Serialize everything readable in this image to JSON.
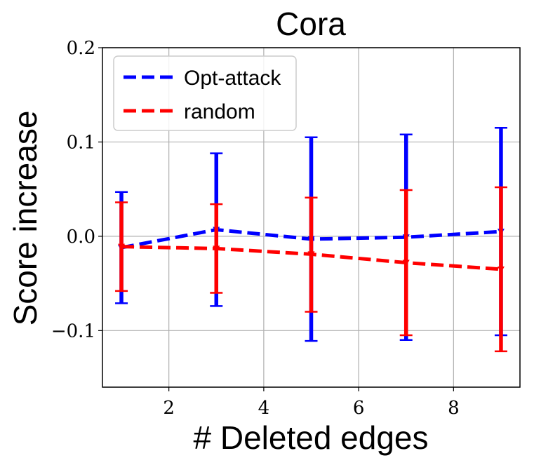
{
  "chart_data": {
    "type": "line",
    "title": "Cora",
    "xlabel": "# Deleted edges",
    "ylabel": "Score increase",
    "xlim": [
      0.6,
      9.4
    ],
    "ylim": [
      -0.16,
      0.2
    ],
    "x_ticks": [
      2,
      4,
      6,
      8
    ],
    "x_tick_labels": [
      "2",
      "4",
      "6",
      "8"
    ],
    "y_ticks": [
      -0.1,
      0.0,
      0.1,
      0.2
    ],
    "y_tick_labels": [
      "−0.1",
      "0.0",
      "0.1",
      "0.2"
    ],
    "grid": true,
    "legend_position": "top-left",
    "x": [
      1,
      3,
      5,
      7,
      9
    ],
    "series": [
      {
        "name": "Opt-attack",
        "color": "#0000ff",
        "marker": "triangle-down",
        "values": [
          -0.012,
          0.007,
          -0.003,
          -0.001,
          0.005
        ],
        "err_low": [
          -0.071,
          -0.074,
          -0.111,
          -0.11,
          -0.105
        ],
        "err_high": [
          0.047,
          0.088,
          0.105,
          0.108,
          0.115
        ]
      },
      {
        "name": "random",
        "color": "#ff0000",
        "marker": "triangle-down",
        "values": [
          -0.011,
          -0.013,
          -0.019,
          -0.028,
          -0.035
        ],
        "err_low": [
          -0.058,
          -0.06,
          -0.08,
          -0.105,
          -0.122
        ],
        "err_high": [
          0.036,
          0.034,
          0.041,
          0.049,
          0.052
        ]
      }
    ]
  }
}
